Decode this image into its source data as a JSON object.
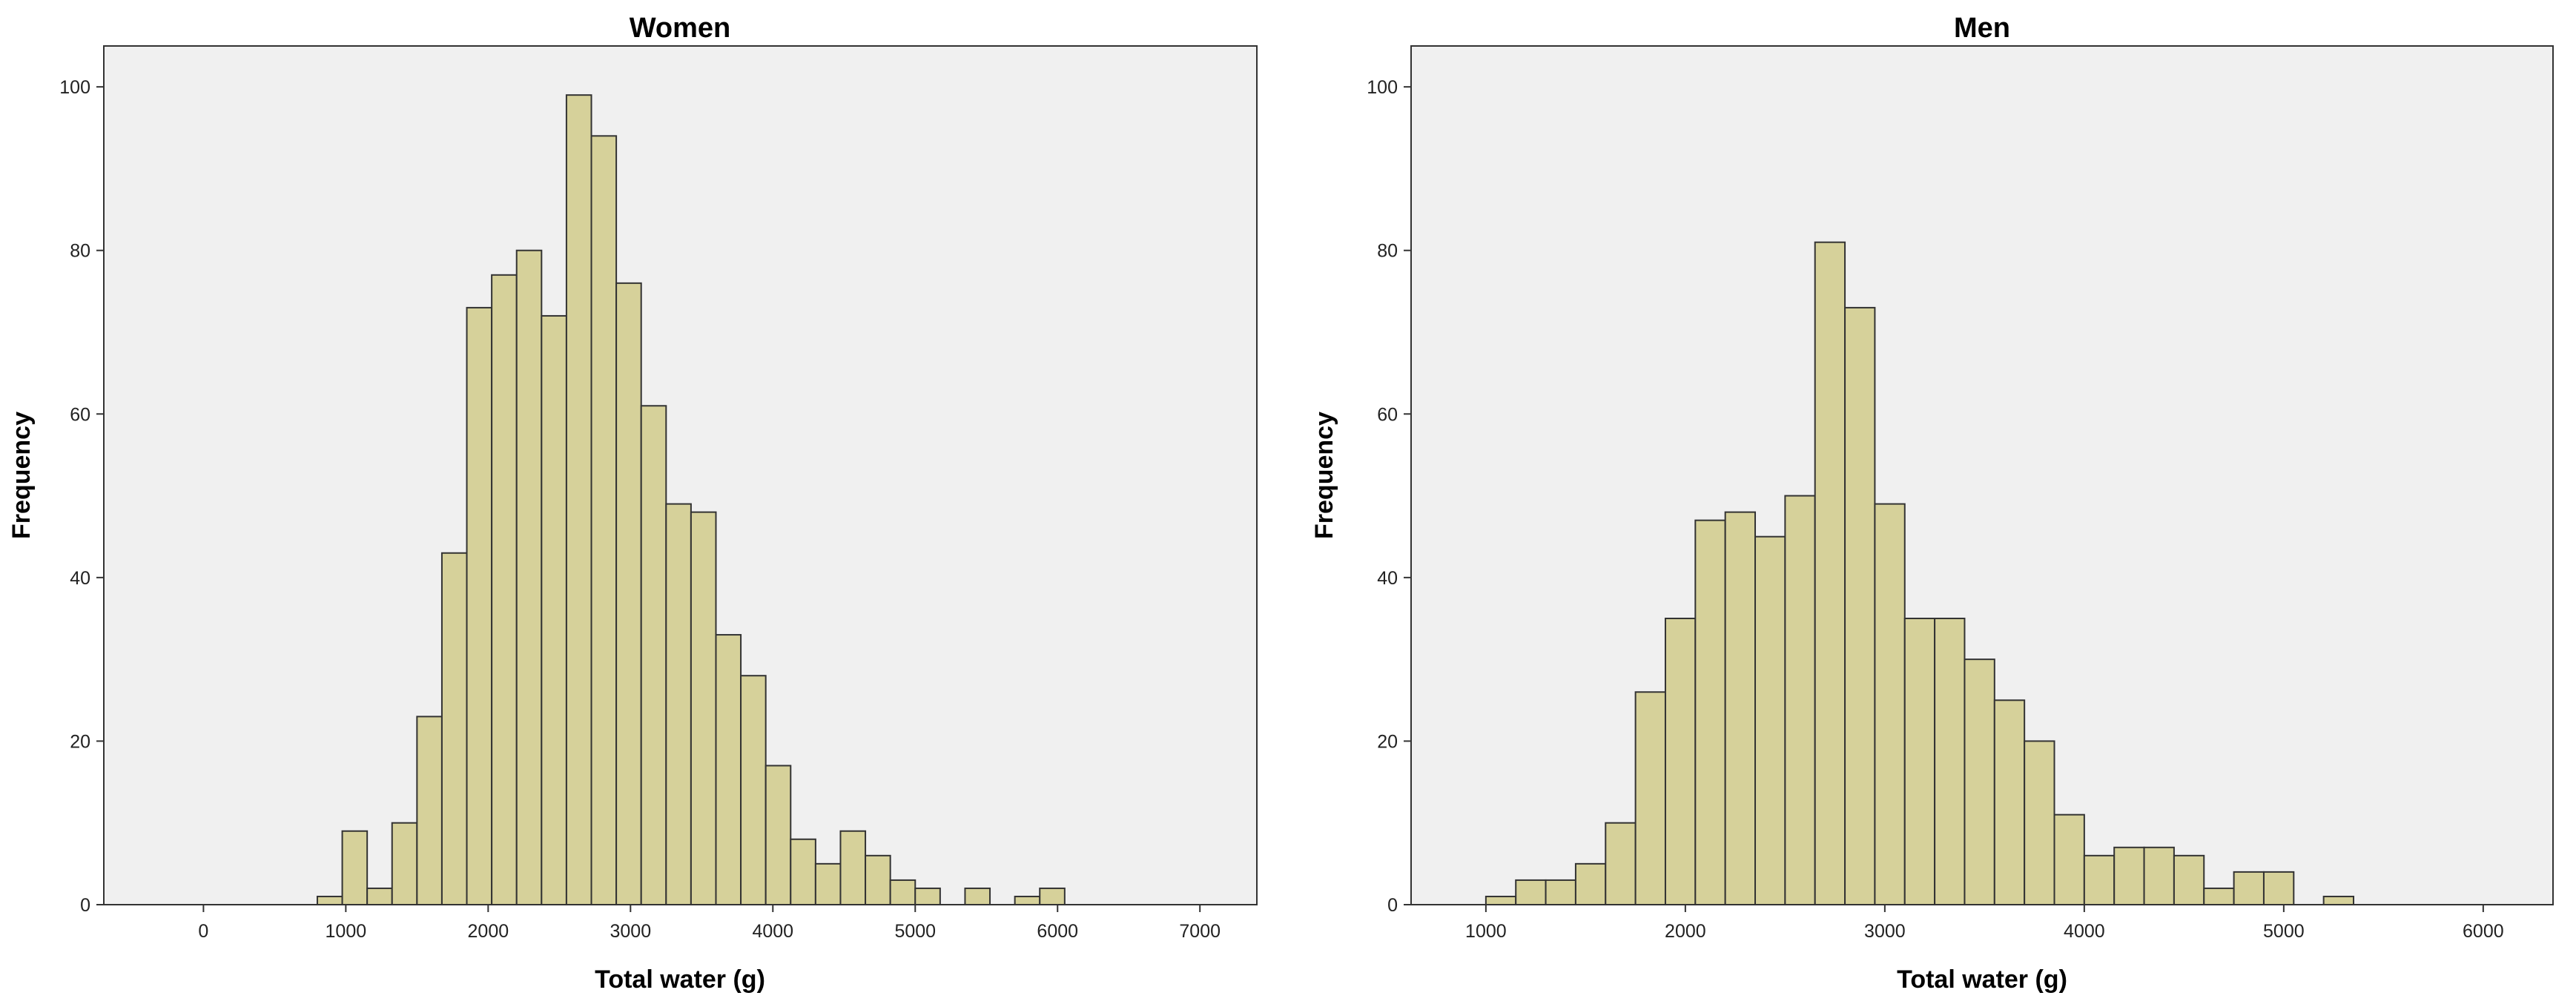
{
  "chart_data": [
    {
      "type": "bar",
      "title": "Women",
      "xlabel": "Total water (g)",
      "ylabel": "Frequency",
      "xlim": [
        -700,
        7400
      ],
      "ylim": [
        0,
        105
      ],
      "xticks": [
        0,
        1000,
        2000,
        3000,
        4000,
        5000,
        6000,
        7000
      ],
      "yticks": [
        0,
        20,
        40,
        60,
        80,
        100
      ],
      "bin_width": 175,
      "bars": [
        {
          "x": 800,
          "y": 1
        },
        {
          "x": 975,
          "y": 9
        },
        {
          "x": 1150,
          "y": 2
        },
        {
          "x": 1325,
          "y": 10
        },
        {
          "x": 1500,
          "y": 23
        },
        {
          "x": 1675,
          "y": 43
        },
        {
          "x": 1850,
          "y": 73
        },
        {
          "x": 2025,
          "y": 77
        },
        {
          "x": 2200,
          "y": 80
        },
        {
          "x": 2375,
          "y": 72
        },
        {
          "x": 2550,
          "y": 99
        },
        {
          "x": 2725,
          "y": 94
        },
        {
          "x": 2900,
          "y": 76
        },
        {
          "x": 3075,
          "y": 61
        },
        {
          "x": 3250,
          "y": 49
        },
        {
          "x": 3425,
          "y": 48
        },
        {
          "x": 3600,
          "y": 33
        },
        {
          "x": 3775,
          "y": 28
        },
        {
          "x": 3950,
          "y": 17
        },
        {
          "x": 4125,
          "y": 8
        },
        {
          "x": 4300,
          "y": 5
        },
        {
          "x": 4475,
          "y": 9
        },
        {
          "x": 4650,
          "y": 6
        },
        {
          "x": 4825,
          "y": 3
        },
        {
          "x": 5000,
          "y": 2
        },
        {
          "x": 5350,
          "y": 2
        },
        {
          "x": 5700,
          "y": 1
        },
        {
          "x": 5875,
          "y": 2
        }
      ],
      "bar_color": "#d6d19a",
      "plot_background": "#f0f0f0"
    },
    {
      "type": "bar",
      "title": "Men",
      "xlabel": "Total water (g)",
      "ylabel": "Frequency",
      "xlim": [
        625,
        6350
      ],
      "ylim": [
        0,
        105
      ],
      "xticks": [
        1000,
        2000,
        3000,
        4000,
        5000,
        6000
      ],
      "yticks": [
        0,
        20,
        40,
        60,
        80,
        100
      ],
      "bin_width": 150,
      "bars": [
        {
          "x": 1000,
          "y": 1
        },
        {
          "x": 1150,
          "y": 3
        },
        {
          "x": 1300,
          "y": 3
        },
        {
          "x": 1450,
          "y": 5
        },
        {
          "x": 1600,
          "y": 10
        },
        {
          "x": 1750,
          "y": 26
        },
        {
          "x": 1900,
          "y": 35
        },
        {
          "x": 2050,
          "y": 47
        },
        {
          "x": 2200,
          "y": 48
        },
        {
          "x": 2350,
          "y": 45
        },
        {
          "x": 2500,
          "y": 50
        },
        {
          "x": 2650,
          "y": 81
        },
        {
          "x": 2800,
          "y": 73
        },
        {
          "x": 2950,
          "y": 49
        },
        {
          "x": 3100,
          "y": 35
        },
        {
          "x": 3250,
          "y": 35
        },
        {
          "x": 3400,
          "y": 30
        },
        {
          "x": 3550,
          "y": 25
        },
        {
          "x": 3700,
          "y": 20
        },
        {
          "x": 3850,
          "y": 11
        },
        {
          "x": 4000,
          "y": 6
        },
        {
          "x": 4150,
          "y": 7
        },
        {
          "x": 4300,
          "y": 7
        },
        {
          "x": 4450,
          "y": 6
        },
        {
          "x": 4600,
          "y": 2
        },
        {
          "x": 4750,
          "y": 4
        },
        {
          "x": 4900,
          "y": 4
        },
        {
          "x": 5200,
          "y": 1
        }
      ],
      "bar_color": "#d6d19a",
      "plot_background": "#f0f0f0"
    }
  ]
}
